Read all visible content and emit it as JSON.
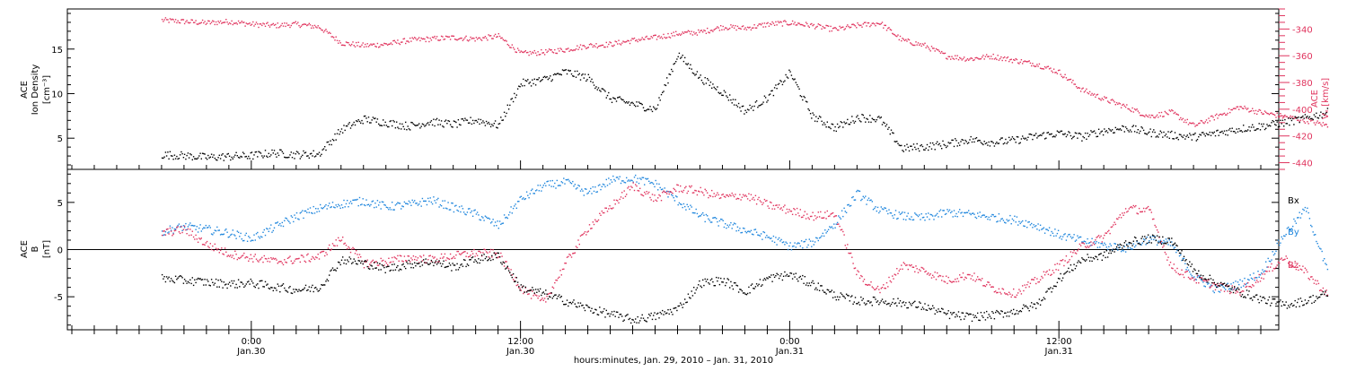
{
  "chart_data": [
    {
      "type": "scatter",
      "panel": "top",
      "ylabel_left": [
        "ACE",
        "Ion Density",
        "[cm⁻³]"
      ],
      "ylabel_right": [
        "ACE",
        "Vₓ [km/s]"
      ],
      "ylim_left": [
        1.5,
        19.5
      ],
      "yticks_left": [
        5,
        10,
        15
      ],
      "ylim_right": [
        -445,
        -325
      ],
      "yticks_right": [
        -340,
        -360,
        -380,
        -400,
        -420,
        -440
      ],
      "grid": false,
      "series": [
        {
          "name": "Ion Density",
          "axis": "left",
          "color": "#000000",
          "x": [
            -4,
            -3,
            -2,
            -1,
            0,
            1,
            2,
            3,
            4,
            5,
            6,
            7,
            8,
            9,
            10,
            11,
            12,
            13,
            14,
            15,
            16,
            17,
            18,
            19,
            20,
            21,
            22,
            23,
            24,
            25,
            26,
            27,
            28,
            29,
            30,
            31,
            32,
            33,
            34,
            35,
            36,
            37,
            38,
            39,
            40,
            41,
            42,
            43,
            44,
            45,
            46,
            47,
            48
          ],
          "y": [
            3.2,
            3.1,
            2.9,
            3.0,
            3.1,
            3.4,
            3.2,
            3.3,
            6.0,
            7.2,
            6.8,
            6.4,
            6.9,
            6.6,
            7.1,
            6.5,
            11.2,
            11.6,
            12.5,
            11.8,
            9.5,
            8.9,
            8.3,
            14.5,
            11.8,
            10.2,
            8.1,
            9.6,
            12.4,
            7.5,
            6.2,
            7.4,
            7.2,
            3.9,
            4.1,
            4.4,
            4.9,
            4.6,
            4.8,
            5.3,
            5.6,
            5.2,
            5.9,
            6.2,
            5.7,
            5.4,
            5.2,
            5.6,
            6.1,
            6.4,
            6.8,
            7.3,
            8.0
          ]
        },
        {
          "name": "Vx",
          "axis": "right",
          "color": "#e0345e",
          "x": [
            -4,
            -3,
            -2,
            -1,
            0,
            1,
            2,
            3,
            4,
            5,
            6,
            7,
            8,
            9,
            10,
            11,
            12,
            13,
            14,
            15,
            16,
            17,
            18,
            19,
            20,
            21,
            22,
            23,
            24,
            25,
            26,
            27,
            28,
            29,
            30,
            31,
            32,
            33,
            34,
            35,
            36,
            37,
            38,
            39,
            40,
            41,
            42,
            43,
            44,
            45,
            46,
            47,
            48
          ],
          "y": [
            -333,
            -334,
            -335,
            -334,
            -336,
            -337,
            -336,
            -338,
            -350,
            -352,
            -351,
            -348,
            -347,
            -346,
            -347,
            -345,
            -358,
            -357,
            -355,
            -352,
            -351,
            -348,
            -346,
            -343,
            -342,
            -338,
            -339,
            -336,
            -335,
            -337,
            -340,
            -337,
            -335,
            -348,
            -352,
            -360,
            -362,
            -360,
            -363,
            -366,
            -372,
            -385,
            -392,
            -398,
            -405,
            -402,
            -412,
            -405,
            -398,
            -402,
            -405,
            -408,
            -412
          ]
        }
      ]
    },
    {
      "type": "scatter",
      "panel": "bottom",
      "ylabel_left": [
        "ACE",
        "B",
        "[nT]"
      ],
      "ylim": [
        -8.5,
        8.5
      ],
      "yticks": [
        -5,
        0,
        5
      ],
      "zero_line": true,
      "grid": false,
      "legend": [
        "Bx",
        "By",
        "Bz"
      ],
      "series": [
        {
          "name": "Bx",
          "color": "#000000",
          "x": [
            -4,
            -3,
            -2,
            -1,
            0,
            1,
            2,
            3,
            4,
            5,
            6,
            7,
            8,
            9,
            10,
            11,
            12,
            13,
            14,
            15,
            16,
            17,
            18,
            19,
            20,
            21,
            22,
            23,
            24,
            25,
            26,
            27,
            28,
            29,
            30,
            31,
            32,
            33,
            34,
            35,
            36,
            37,
            38,
            39,
            40,
            41,
            42,
            43,
            44,
            45,
            46,
            47,
            48
          ],
          "y": [
            -3.0,
            -3.2,
            -3.4,
            -3.6,
            -3.5,
            -3.9,
            -4.2,
            -4.0,
            -1.0,
            -1.4,
            -2.0,
            -1.5,
            -1.2,
            -1.8,
            -1.0,
            -0.6,
            -4.0,
            -4.6,
            -5.4,
            -6.2,
            -6.8,
            -7.4,
            -7.0,
            -6.2,
            -3.5,
            -3.2,
            -4.4,
            -3.0,
            -2.6,
            -3.6,
            -4.8,
            -5.4,
            -5.4,
            -5.6,
            -6.0,
            -6.8,
            -7.1,
            -6.9,
            -6.5,
            -5.8,
            -3.0,
            -1.0,
            -0.6,
            0.8,
            1.2,
            1.0,
            -2.2,
            -3.5,
            -4.4,
            -5.2,
            -5.8,
            -5.4,
            -4.6
          ]
        },
        {
          "name": "By",
          "color": "#1f86dd",
          "x": [
            -4,
            -3,
            -2,
            -1,
            0,
            1,
            2,
            3,
            4,
            5,
            6,
            7,
            8,
            9,
            10,
            11,
            12,
            13,
            14,
            15,
            16,
            17,
            18,
            19,
            20,
            21,
            22,
            23,
            24,
            25,
            26,
            27,
            28,
            29,
            30,
            31,
            32,
            33,
            34,
            35,
            36,
            37,
            38,
            39,
            40,
            41,
            42,
            43,
            44,
            45,
            46,
            47,
            48
          ],
          "y": [
            2.0,
            2.5,
            2.2,
            1.8,
            1.2,
            2.4,
            3.6,
            4.4,
            4.9,
            5.2,
            4.6,
            4.8,
            5.3,
            4.5,
            3.8,
            2.6,
            5.4,
            6.8,
            7.2,
            6.0,
            7.4,
            7.6,
            7.0,
            5.2,
            3.6,
            2.8,
            2.1,
            1.4,
            0.4,
            0.8,
            2.8,
            6.0,
            4.2,
            3.6,
            3.4,
            4.0,
            3.8,
            3.5,
            3.2,
            2.6,
            1.6,
            1.0,
            0.5,
            0.2,
            1.2,
            0.6,
            -2.8,
            -4.2,
            -3.6,
            -2.4,
            1.6,
            4.4,
            -2.6
          ]
        },
        {
          "name": "Bz",
          "color": "#e0345e",
          "x": [
            -4,
            -3,
            -2,
            -1,
            0,
            1,
            2,
            3,
            4,
            5,
            6,
            7,
            8,
            9,
            10,
            11,
            12,
            13,
            14,
            15,
            16,
            17,
            18,
            19,
            20,
            21,
            22,
            23,
            24,
            25,
            26,
            27,
            28,
            29,
            30,
            31,
            32,
            33,
            34,
            35,
            36,
            37,
            38,
            39,
            40,
            41,
            42,
            43,
            44,
            45,
            46,
            47,
            48
          ],
          "y": [
            1.8,
            2.2,
            0.6,
            -0.4,
            -0.8,
            -1.2,
            -1.0,
            -0.7,
            1.2,
            -1.4,
            -1.2,
            -0.8,
            -1.0,
            -0.6,
            -0.3,
            -0.4,
            -4.0,
            -5.6,
            -1.4,
            2.4,
            4.6,
            6.8,
            5.4,
            6.6,
            6.2,
            5.6,
            5.8,
            4.8,
            4.2,
            3.6,
            3.8,
            -2.6,
            -4.4,
            -1.6,
            -2.2,
            -3.2,
            -2.6,
            -4.0,
            -4.6,
            -3.2,
            -1.6,
            0.4,
            1.4,
            4.4,
            4.2,
            -1.8,
            -3.0,
            -3.8,
            -4.4,
            -2.8,
            -0.8,
            -2.4,
            -4.8
          ]
        }
      ]
    }
  ],
  "xaxis": {
    "tick_labels": [
      {
        "hour": 0,
        "time": "0:00",
        "date": "Jan.30"
      },
      {
        "hour": 12,
        "time": "12:00",
        "date": "Jan.30"
      },
      {
        "hour": 24,
        "time": "0:00",
        "date": "Jan.31"
      },
      {
        "hour": 36,
        "time": "12:00",
        "date": "Jan.31"
      }
    ],
    "title": "hours:minutes, Jan. 29, 2010 – Jan. 31, 2010",
    "range_hours": [
      -8.2,
      45.8
    ]
  },
  "legend_labels": {
    "bx": "Bx",
    "by": "By",
    "bz": "Bz"
  },
  "colors": {
    "black": "#000000",
    "red": "#e0345e",
    "blue": "#1f86dd"
  }
}
